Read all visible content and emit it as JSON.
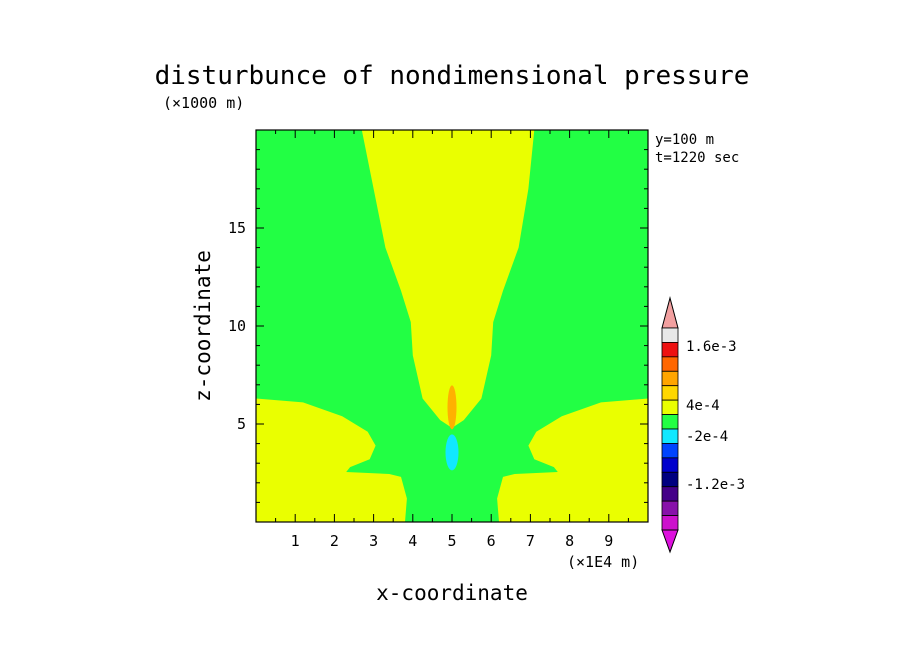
{
  "chart_data": {
    "type": "heatmap",
    "title": "disturbunce of nondimensional pressure",
    "xlabel": "x-coordinate",
    "ylabel": "z-coordinate",
    "x_unit": "(×1E4 m)",
    "y_unit": "(×1000 m)",
    "info_lines": [
      "y=100 m",
      "t=1220 sec"
    ],
    "xlim": [
      0,
      10
    ],
    "ylim": [
      0,
      20
    ],
    "x_ticks": [
      {
        "value": 1,
        "label": "1"
      },
      {
        "value": 2,
        "label": "2"
      },
      {
        "value": 3,
        "label": "3"
      },
      {
        "value": 4,
        "label": "4"
      },
      {
        "value": 5,
        "label": "5"
      },
      {
        "value": 6,
        "label": "6"
      },
      {
        "value": 7,
        "label": "7"
      },
      {
        "value": 8,
        "label": "8"
      },
      {
        "value": 9,
        "label": "9"
      }
    ],
    "y_ticks": [
      {
        "value": 5,
        "label": "5"
      },
      {
        "value": 10,
        "label": "10"
      },
      {
        "value": 15,
        "label": "15"
      }
    ],
    "background_level": "-2e-4 to 4e-4",
    "colorbar": {
      "levels": [
        {
          "color": "#e8e8e8"
        },
        {
          "color": "#ee1111"
        },
        {
          "color": "#ff6600"
        },
        {
          "color": "#ffa500"
        },
        {
          "color": "#ffd700"
        },
        {
          "color": "#eaff00"
        },
        {
          "color": "#22ff44"
        },
        {
          "color": "#11e8ff"
        },
        {
          "color": "#0044ff"
        },
        {
          "color": "#0000cc"
        },
        {
          "color": "#000080"
        },
        {
          "color": "#440088"
        },
        {
          "color": "#8811aa"
        },
        {
          "color": "#cc11cc"
        }
      ],
      "top_arrow_color": "#f2a0a0",
      "bottom_arrow_color": "#dd11dd",
      "labels": [
        "1.6e-3",
        "4e-4",
        "-2e-4",
        "-1.2e-3"
      ]
    },
    "regions": [
      {
        "name": "positive-plume",
        "color": "#eaff00"
      },
      {
        "name": "positive-left-lobe",
        "color": "#eaff00"
      },
      {
        "name": "positive-right-lobe",
        "color": "#eaff00"
      },
      {
        "name": "max-core",
        "color": "#ffb000"
      },
      {
        "name": "min-core",
        "color": "#11e8ff"
      }
    ],
    "background_color": "#22ff44"
  }
}
